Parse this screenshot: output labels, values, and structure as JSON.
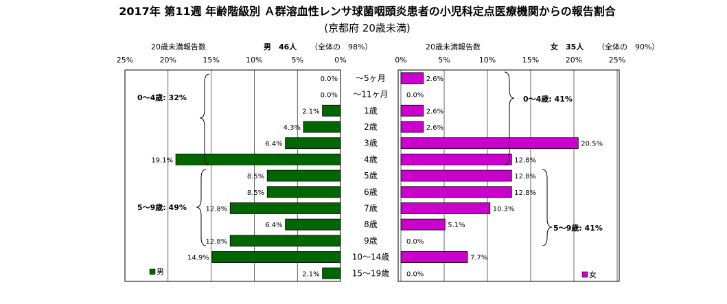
{
  "chart_data": {
    "type": "bar",
    "title": "2017年 第11週 年齢階級別 Ａ群溶血性レンサ球菌咽頭炎患者の小児科定点医療機関からの報告割合",
    "subtitle": "(京都府 20歳未満)",
    "categories": [
      "～5ヶ月",
      "～11ヶ月",
      "1歳",
      "2歳",
      "3歳",
      "4歳",
      "5歳",
      "6歳",
      "7歳",
      "8歳",
      "9歳",
      "10～14歳",
      "15～19歳"
    ],
    "xlim": [
      0,
      25
    ],
    "x_ticks": [
      "25%",
      "20%",
      "15%",
      "10%",
      "5%",
      "0%"
    ],
    "x_ticks_right": [
      "0%",
      "5%",
      "10%",
      "15%",
      "20%",
      "25%"
    ],
    "series": [
      {
        "name": "男",
        "side": "left",
        "header_label": "20歳未満報告数",
        "header_count": "男　46人",
        "header_share": "（全体の　98%）",
        "color": "#006600",
        "values": [
          0.0,
          0.0,
          2.1,
          4.3,
          6.4,
          19.1,
          8.5,
          8.5,
          12.8,
          6.4,
          12.8,
          14.9,
          2.1
        ],
        "labels": [
          "0.0%",
          "0.0%",
          "2.1%",
          "4.3%",
          "6.4%",
          "19.1%",
          "8.5%",
          "8.5%",
          "12.8%",
          "6.4%",
          "12.8%",
          "14.9%",
          "2.1%"
        ]
      },
      {
        "name": "女",
        "side": "right",
        "header_label": "20歳未満報告数",
        "header_count": "女　35人",
        "header_share": "（全体の　90%）",
        "color": "#cc00cc",
        "values": [
          2.6,
          0.0,
          2.6,
          2.6,
          20.5,
          12.8,
          12.8,
          12.8,
          10.3,
          5.1,
          0.0,
          7.7,
          0.0
        ],
        "labels": [
          "2.6%",
          "0.0%",
          "2.6%",
          "2.6%",
          "20.5%",
          "12.8%",
          "12.8%",
          "12.8%",
          "10.3%",
          "5.1%",
          "0.0%",
          "7.7%",
          "0.0%"
        ]
      }
    ],
    "annotations": {
      "male_0_4": "0～4歳: 32%",
      "male_5_9": "5～9歳: 49%",
      "female_0_4": "0～4歳: 41%",
      "female_5_9": "5～9歳: 41%"
    },
    "legend": {
      "male": "男",
      "female": "女",
      "placement": "bottom-left / bottom-right"
    }
  }
}
